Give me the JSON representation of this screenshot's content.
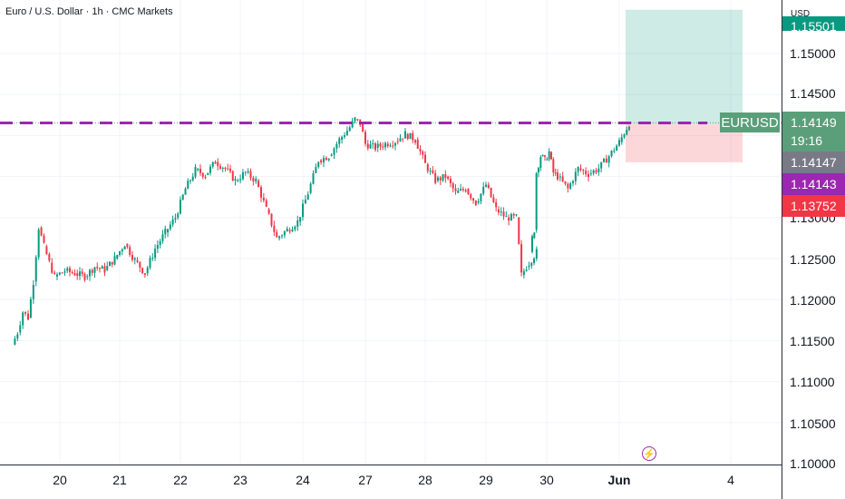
{
  "header": {
    "title": "Euro / U.S. Dollar · 1h · CMC Markets",
    "currency": "USD"
  },
  "price_axis": {
    "ticks": [
      "1.15000",
      "1.14500",
      "1.13000",
      "1.12500",
      "1.12000",
      "1.11500",
      "1.11000",
      "1.10500",
      "1.10000"
    ],
    "tag_top_partial": "1.15501"
  },
  "time_axis": {
    "ticks": [
      "20",
      "21",
      "22",
      "23",
      "24",
      "27",
      "28",
      "29",
      "30",
      "Jun",
      "4"
    ]
  },
  "markers": {
    "symbol": "EURUSD",
    "last_price": "1.14149",
    "countdown": "19:16",
    "bid": "1.14147",
    "line_price": "1.14143",
    "stop_price": "1.13752"
  },
  "colors": {
    "up": "#089981",
    "down": "#f23645",
    "line": "#9c27b0",
    "profit": "#089981",
    "stop": "#f23645",
    "neutral": "#787b86"
  },
  "chart_data": {
    "type": "candlestick",
    "title": "Euro / U.S. Dollar · 1h · CMC Markets",
    "ylabel": "USD",
    "ylim": [
      1.0995,
      1.1585
    ],
    "horizontal_line": 1.14143,
    "position": {
      "entry": 1.14143,
      "target": 1.15501,
      "stop": 1.13752
    },
    "last_price": 1.14149,
    "grid": true,
    "path": [
      [
        "19 06:00",
        1.1145
      ],
      [
        "19 08:00",
        1.116
      ],
      [
        "19 10:00",
        1.1185
      ],
      [
        "19 12:00",
        1.1178
      ],
      [
        "19 14:00",
        1.1222
      ],
      [
        "19 16:00",
        1.1288
      ],
      [
        "19 18:00",
        1.1265
      ],
      [
        "19 20:00",
        1.1245
      ],
      [
        "19 22:00",
        1.1228
      ],
      [
        "20 02:00",
        1.1235
      ],
      [
        "20 06:00",
        1.1232
      ],
      [
        "20 10:00",
        1.1228
      ],
      [
        "20 14:00",
        1.124
      ],
      [
        "20 18:00",
        1.1236
      ],
      [
        "20 22:00",
        1.125
      ],
      [
        "21 02:00",
        1.1268
      ],
      [
        "21 06:00",
        1.1248
      ],
      [
        "21 10:00",
        1.1232
      ],
      [
        "21 14:00",
        1.1262
      ],
      [
        "21 18:00",
        1.1282
      ],
      [
        "21 22:00",
        1.13
      ],
      [
        "22 02:00",
        1.1335
      ],
      [
        "22 06:00",
        1.1358
      ],
      [
        "22 10:00",
        1.1352
      ],
      [
        "22 14:00",
        1.1368
      ],
      [
        "22 18:00",
        1.136
      ],
      [
        "22 22:00",
        1.1345
      ],
      [
        "23 02:00",
        1.1355
      ],
      [
        "23 06:00",
        1.1345
      ],
      [
        "23 10:00",
        1.131
      ],
      [
        "23 14:00",
        1.1275
      ],
      [
        "23 18:00",
        1.1285
      ],
      [
        "23 22:00",
        1.1295
      ],
      [
        "24 02:00",
        1.133
      ],
      [
        "24 06:00",
        1.137
      ],
      [
        "24 10:00",
        1.1375
      ],
      [
        "24 14:00",
        1.1395
      ],
      [
        "24 18:00",
        1.141
      ],
      [
        "24 20:00",
        1.142
      ],
      [
        "24 22:00",
        1.1415
      ],
      [
        "27 00:00",
        1.139
      ],
      [
        "27 04:00",
        1.1385
      ],
      [
        "27 08:00",
        1.139
      ],
      [
        "27 12:00",
        1.1393
      ],
      [
        "27 16:00",
        1.1402
      ],
      [
        "27 20:00",
        1.1395
      ],
      [
        "28 00:00",
        1.1365
      ],
      [
        "28 04:00",
        1.1345
      ],
      [
        "28 08:00",
        1.135
      ],
      [
        "28 12:00",
        1.133
      ],
      [
        "28 16:00",
        1.1335
      ],
      [
        "28 20:00",
        1.1318
      ],
      [
        "29 00:00",
        1.134
      ],
      [
        "29 04:00",
        1.131
      ],
      [
        "29 08:00",
        1.13
      ],
      [
        "29 12:00",
        1.13
      ],
      [
        "29 14:00",
        1.123
      ],
      [
        "29 16:00",
        1.124
      ],
      [
        "29 20:00",
        1.1258
      ],
      [
        "30 00:00",
        1.1275
      ],
      [
        "30 02:00",
        1.1285
      ],
      [
        "30 04:00",
        1.1355
      ],
      [
        "30 08:00",
        1.1375
      ],
      [
        "30 12:00",
        1.137
      ],
      [
        "30 16:00",
        1.138
      ],
      [
        "30 20:00",
        1.1355
      ],
      [
        "31 00:00",
        1.135
      ],
      [
        "31 04:00",
        1.1335
      ],
      [
        "31 08:00",
        1.136
      ],
      [
        "31 12:00",
        1.1353
      ],
      [
        "31 16:00",
        1.136
      ],
      [
        "31 20:00",
        1.1375
      ],
      [
        "01 00:00",
        1.1392
      ],
      [
        "01 04:00",
        1.1415
      ]
    ]
  }
}
